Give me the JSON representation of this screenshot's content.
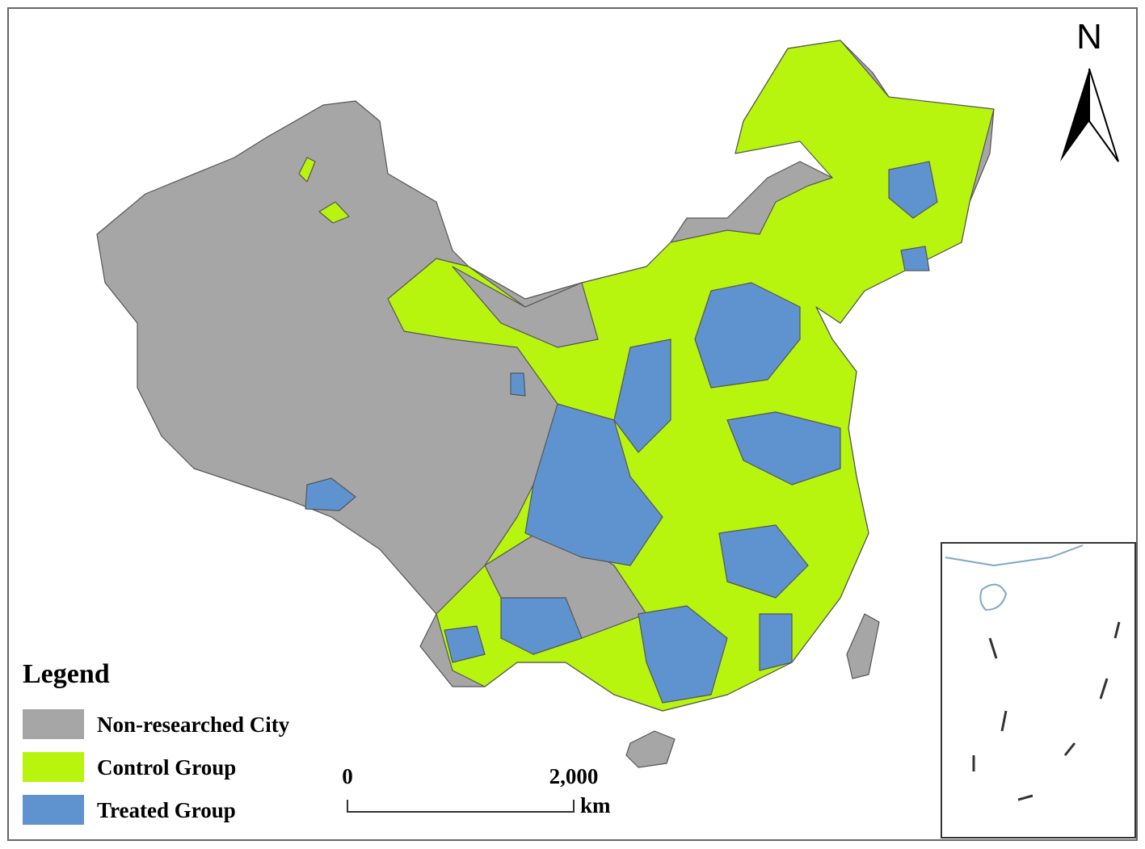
{
  "north_arrow": "N",
  "legend": {
    "title": "Legend",
    "items": [
      {
        "label": "Non-researched City",
        "color": "#a6a6a6"
      },
      {
        "label": "Control Group",
        "color": "#b7f50f"
      },
      {
        "label": "Treated Group",
        "color": "#5f93cf"
      }
    ]
  },
  "scale_bar": {
    "start": "0",
    "end": "2,000",
    "unit": "km"
  }
}
